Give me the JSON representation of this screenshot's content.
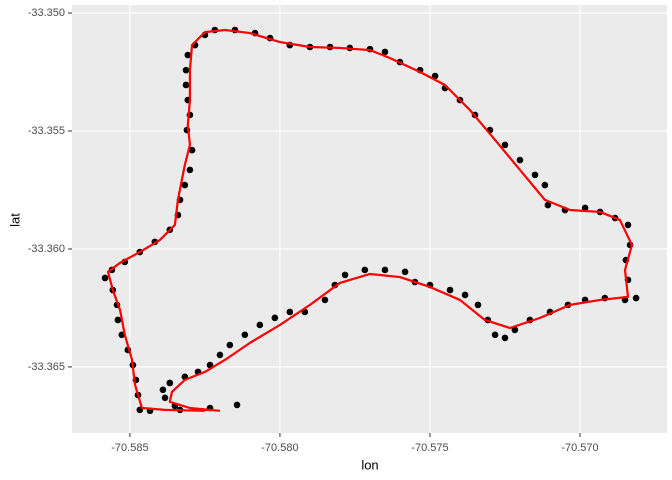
{
  "chart_data": {
    "type": "scatter",
    "x_label": "lon",
    "y_label": "lat",
    "xlim": [
      -70.58693,
      -70.5671
    ],
    "ylim": [
      -33.3678,
      -33.34966
    ],
    "xticks": [
      -70.585,
      {
        "value": -70.58,
        "label": "-70.580"
      },
      -70.575,
      {
        "value": -70.57,
        "label": "-70.570"
      }
    ],
    "yticks": [
      {
        "value": -33.35,
        "label": "-33.350"
      },
      -33.355,
      {
        "value": -33.36,
        "label": "-33.360"
      },
      -33.365
    ],
    "grid": true,
    "points": {
      "color": "#000000",
      "x": [
        -70.58143,
        -70.58233,
        -70.58333,
        -70.58433,
        -70.58467,
        -70.58473,
        -70.5848,
        -70.5849,
        -70.58507,
        -70.58527,
        -70.5854,
        -70.58543,
        -70.58557,
        -70.58583,
        -70.5856,
        -70.58517,
        -70.58467,
        -70.58417,
        -70.58367,
        -70.5834,
        -70.58333,
        -70.58317,
        -70.583,
        -70.58293,
        -70.5831,
        -70.583,
        -70.58307,
        -70.58313,
        -70.58313,
        -70.58307,
        -70.58283,
        -70.5825,
        -70.58217,
        -70.5815,
        -70.58083,
        -70.58033,
        -70.57967,
        -70.579,
        -70.57833,
        -70.57767,
        -70.577,
        -70.5765,
        -70.576,
        -70.57533,
        -70.57483,
        -70.5745,
        -70.574,
        -70.5735,
        -70.573,
        -70.5725,
        -70.572,
        -70.5715,
        -70.57117,
        -70.57107,
        -70.5705,
        -70.56983,
        -70.56933,
        -70.56883,
        -70.5684,
        -70.56833,
        -70.56847,
        -70.5684,
        -70.56813,
        -70.5685,
        -70.56917,
        -70.56983,
        -70.5704,
        -70.571,
        -70.57167,
        -70.57217,
        -70.5725,
        -70.57283,
        -70.57307,
        -70.5734,
        -70.57383,
        -70.57433,
        -70.575,
        -70.5755,
        -70.57583,
        -70.5765,
        -70.57717,
        -70.57783,
        -70.57817,
        -70.5785,
        -70.57917,
        -70.57967,
        -70.58017,
        -70.58067,
        -70.58117,
        -70.58167,
        -70.582,
        -70.58233,
        -70.58273,
        -70.58317,
        -70.58367,
        -70.5839,
        -70.58383,
        -70.5835
      ],
      "y": [
        -33.36661,
        -33.36674,
        -33.36682,
        -33.36686,
        -33.36682,
        -33.36619,
        -33.36555,
        -33.36492,
        -33.36428,
        -33.36364,
        -33.36301,
        -33.36237,
        -33.36174,
        -33.36123,
        -33.36089,
        -33.36055,
        -33.36013,
        -33.3597,
        -33.35919,
        -33.35856,
        -33.35792,
        -33.35729,
        -33.35665,
        -33.35581,
        -33.35496,
        -33.35432,
        -33.35369,
        -33.35305,
        -33.35242,
        -33.35178,
        -33.35136,
        -33.35093,
        -33.35072,
        -33.35072,
        -33.35085,
        -33.35106,
        -33.35136,
        -33.35144,
        -33.35144,
        -33.35148,
        -33.35153,
        -33.35165,
        -33.35208,
        -33.35242,
        -33.35267,
        -33.35318,
        -33.35369,
        -33.35432,
        -33.35496,
        -33.35559,
        -33.35623,
        -33.35686,
        -33.35729,
        -33.35814,
        -33.35835,
        -33.35826,
        -33.35843,
        -33.35869,
        -33.35898,
        -33.35983,
        -33.36047,
        -33.36131,
        -33.36208,
        -33.36216,
        -33.36208,
        -33.36216,
        -33.36237,
        -33.36267,
        -33.36301,
        -33.36343,
        -33.36377,
        -33.36364,
        -33.36301,
        -33.36237,
        -33.36195,
        -33.36174,
        -33.36153,
        -33.3614,
        -33.36097,
        -33.36089,
        -33.36089,
        -33.3611,
        -33.36153,
        -33.36216,
        -33.36267,
        -33.36267,
        -33.36292,
        -33.36322,
        -33.36364,
        -33.36407,
        -33.36449,
        -33.36492,
        -33.36521,
        -33.36542,
        -33.36568,
        -33.36597,
        -33.36631,
        -33.36665
      ]
    },
    "path": {
      "color": "#ff0000",
      "x": [
        -70.582,
        -70.583,
        -70.58367,
        -70.5836,
        -70.58317,
        -70.5825,
        -70.58183,
        -70.581,
        -70.58,
        -70.579,
        -70.578,
        -70.577,
        -70.576,
        -70.575,
        -70.574,
        -70.57317,
        -70.57233,
        -70.57133,
        -70.57033,
        -70.56933,
        -70.5684,
        -70.5685,
        -70.56827,
        -70.56867,
        -70.56933,
        -70.57033,
        -70.57117,
        -70.572,
        -70.57283,
        -70.57367,
        -70.5745,
        -70.57533,
        -70.57633,
        -70.577,
        -70.578,
        -70.579,
        -70.58,
        -70.581,
        -70.58183,
        -70.5825,
        -70.58293,
        -70.583,
        -70.583,
        -70.58307,
        -70.583,
        -70.58317,
        -70.5834,
        -70.5835,
        -70.584,
        -70.58467,
        -70.58533,
        -70.58573,
        -70.58557,
        -70.58533,
        -70.58517,
        -70.58493,
        -70.58483,
        -70.5846,
        -70.58383,
        -70.5825
      ],
      "y": [
        -33.36686,
        -33.36674,
        -33.36648,
        -33.36606,
        -33.36555,
        -33.36521,
        -33.3647,
        -33.36398,
        -33.36322,
        -33.36237,
        -33.36144,
        -33.36106,
        -33.36119,
        -33.36161,
        -33.36216,
        -33.36301,
        -33.36335,
        -33.36292,
        -33.36237,
        -33.36216,
        -33.36203,
        -33.36089,
        -33.35983,
        -33.35877,
        -33.35843,
        -33.35835,
        -33.35792,
        -33.35665,
        -33.35538,
        -33.35411,
        -33.35305,
        -33.3525,
        -33.35191,
        -33.35157,
        -33.35148,
        -33.35144,
        -33.35123,
        -33.35085,
        -33.35072,
        -33.35081,
        -33.35136,
        -33.35242,
        -33.35369,
        -33.35475,
        -33.35559,
        -33.35644,
        -33.35792,
        -33.35898,
        -33.35962,
        -33.36013,
        -33.36059,
        -33.36097,
        -33.36174,
        -33.36258,
        -33.36364,
        -33.3647,
        -33.36576,
        -33.36674,
        -33.36682,
        -33.36686
      ]
    }
  }
}
